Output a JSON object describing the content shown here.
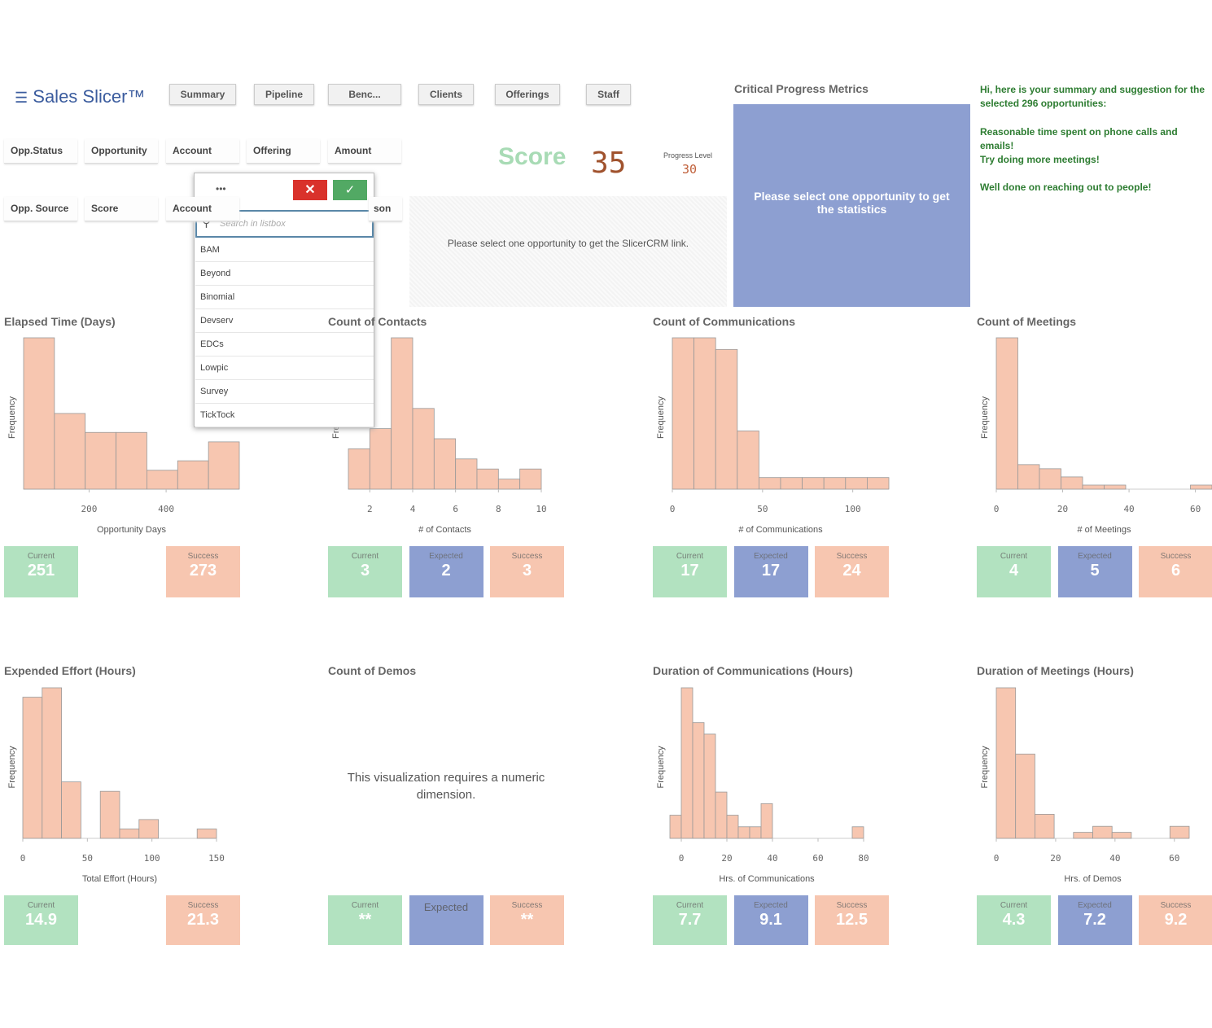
{
  "header": {
    "logo": "Sales Slicer™",
    "nav": [
      "Summary",
      "Pipeline",
      "Benc...",
      "Clients",
      "Offerings",
      "Staff"
    ]
  },
  "filters": [
    "Opp.Status",
    "Opportunity",
    "Account",
    "Offering",
    "Amount",
    "Opp. Source",
    "Score",
    "Account",
    "son"
  ],
  "listbox": {
    "menu": "•••",
    "placeholder": "Search in listbox",
    "items": [
      "BAM",
      "Beyond",
      "Binomial",
      "Devserv",
      "EDCs",
      "Lowpic",
      "Survey",
      "TickTock"
    ]
  },
  "score": {
    "label": "Score",
    "value": 35,
    "progress_label": "Progress Level",
    "progress_value": 30
  },
  "link_message": "Please select one opportunity to get the SlicerCRM link.",
  "metrics": {
    "title": "Critical Progress Metrics",
    "message": "Please select one opportunity to get the statistics"
  },
  "summary": [
    "Hi, here is your summary and suggestion for the selected 296 opportunities:",
    "Reasonable time spent on phone calls and emails!",
    "Try doing more meetings!",
    "Well done on reaching out to people!"
  ],
  "panels": [
    {
      "type": "histogram",
      "title": "Elapsed Time (Days)",
      "x_label": "Opportunity Days",
      "y_label": "Frequency",
      "color": "#f7c6b0",
      "bins": [
        30,
        110,
        190,
        270,
        350,
        430,
        510,
        590
      ],
      "counts": [
        16,
        8,
        6,
        6,
        2,
        3,
        5
      ],
      "xlim": [
        30,
        590
      ],
      "xticks": [
        200,
        400
      ],
      "kpis": [
        {
          "label": "Current",
          "value": 251,
          "color": "#b2e2c0"
        },
        {
          "label": "Success",
          "value": 273,
          "color": "#f7c6b0"
        }
      ]
    },
    {
      "type": "histogram",
      "title": "Count of Contacts",
      "x_label": "# of Contacts",
      "y_label": "Frequency",
      "color": "#f7c6b0",
      "bins": [
        1,
        2,
        3,
        4,
        5,
        6,
        7,
        8,
        9,
        10
      ],
      "counts": [
        4,
        6,
        15,
        8,
        5,
        3,
        2,
        1,
        2
      ],
      "xlim": [
        1,
        10
      ],
      "xticks": [
        2,
        4,
        6,
        8,
        10
      ],
      "kpis": [
        {
          "label": "Current",
          "value": 3,
          "color": "#b2e2c0"
        },
        {
          "label": "Expected",
          "value": 2,
          "color": "#8d9fd1"
        },
        {
          "label": "Success",
          "value": 3,
          "color": "#f7c6b0"
        }
      ]
    },
    {
      "type": "histogram",
      "title": "Count of Communications",
      "x_label": "# of Communications",
      "y_label": "Frequency",
      "color": "#f7c6b0",
      "bins": [
        0,
        12,
        24,
        36,
        48,
        60,
        72,
        84,
        96,
        108,
        120
      ],
      "counts": [
        13,
        13,
        12,
        5,
        1,
        1,
        1,
        1,
        1,
        1
      ],
      "xlim": [
        0,
        120
      ],
      "xticks": [
        0,
        50,
        100
      ],
      "kpis": [
        {
          "label": "Current",
          "value": 17,
          "color": "#b2e2c0"
        },
        {
          "label": "Expected",
          "value": 17,
          "color": "#8d9fd1"
        },
        {
          "label": "Success",
          "value": 24,
          "color": "#f7c6b0"
        }
      ]
    },
    {
      "type": "histogram",
      "title": "Count of Meetings",
      "x_label": "# of Meetings",
      "y_label": "Frequency",
      "color": "#f7c6b0",
      "bins": [
        0,
        6.5,
        13,
        19.5,
        26,
        32.5,
        39,
        45.5,
        52,
        58.5,
        65
      ],
      "counts": [
        37,
        6,
        5,
        3,
        1,
        1,
        0,
        0,
        0,
        1
      ],
      "xlim": [
        0,
        65
      ],
      "xticks": [
        0,
        20,
        40,
        60
      ],
      "kpis": [
        {
          "label": "Current",
          "value": 4,
          "color": "#b2e2c0"
        },
        {
          "label": "Expected",
          "value": 5,
          "color": "#8d9fd1"
        },
        {
          "label": "Success",
          "value": 6,
          "color": "#f7c6b0"
        }
      ]
    },
    {
      "type": "histogram",
      "title": "Expended Effort (Hours)",
      "x_label": "Total Effort (Hours)",
      "y_label": "Frequency",
      "color": "#f7c6b0",
      "bins": [
        0,
        15,
        30,
        45,
        60,
        75,
        90,
        105,
        120,
        135,
        150
      ],
      "counts": [
        15,
        16,
        6,
        0,
        5,
        1,
        2,
        0,
        0,
        1
      ],
      "xlim": [
        0,
        150
      ],
      "xticks": [
        0,
        50,
        100,
        150
      ],
      "kpis": [
        {
          "label": "Current",
          "value": 14.9,
          "color": "#b2e2c0"
        },
        {
          "label": "Success",
          "value": 21.3,
          "color": "#f7c6b0"
        }
      ]
    },
    {
      "type": "message",
      "title": "Count of Demos",
      "message": "This visualization requires a numeric dimension.",
      "kpis": [
        {
          "label": "Current",
          "value": "**",
          "color": "#b2e2c0"
        },
        {
          "label": "Expected",
          "color": "#8d9fd1"
        },
        {
          "label": "Success",
          "value": "**",
          "color": "#f7c6b0"
        }
      ]
    },
    {
      "type": "histogram",
      "title": "Duration of Communications (Hours)",
      "x_label": "Hrs. of Communications",
      "y_label": "Frequency",
      "color": "#f7c6b0",
      "bins": [
        -5,
        0,
        5,
        10,
        15,
        20,
        25,
        30,
        35,
        40,
        45,
        50,
        55,
        60,
        65,
        70,
        75,
        80
      ],
      "counts": [
        2,
        13,
        10,
        9,
        4,
        2,
        1,
        1,
        3,
        0,
        0,
        0,
        0,
        0,
        0,
        0,
        1
      ],
      "xlim": [
        -5,
        80
      ],
      "xticks": [
        0,
        20,
        40,
        60,
        80
      ],
      "kpis": [
        {
          "label": "Current",
          "value": 7.7,
          "color": "#b2e2c0"
        },
        {
          "label": "Expected",
          "value": 9.1,
          "color": "#8d9fd1"
        },
        {
          "label": "Success",
          "value": 12.5,
          "color": "#f7c6b0"
        }
      ]
    },
    {
      "type": "histogram",
      "title": "Duration of Meetings (Hours)",
      "x_label": "Hrs. of Demos",
      "y_label": "Frequency",
      "color": "#f7c6b0",
      "bins": [
        0,
        6.5,
        13,
        19.5,
        26,
        32.5,
        39,
        45.5,
        52,
        58.5,
        65
      ],
      "counts": [
        25,
        14,
        4,
        0,
        1,
        2,
        1,
        0,
        0,
        2
      ],
      "xlim": [
        0,
        65
      ],
      "xticks": [
        0,
        20,
        40,
        60
      ],
      "kpis": [
        {
          "label": "Current",
          "value": 4.3,
          "color": "#b2e2c0"
        },
        {
          "label": "Expected",
          "value": 7.2,
          "color": "#8d9fd1"
        },
        {
          "label": "Success",
          "value": 9.2,
          "color": "#f7c6b0"
        }
      ]
    }
  ]
}
